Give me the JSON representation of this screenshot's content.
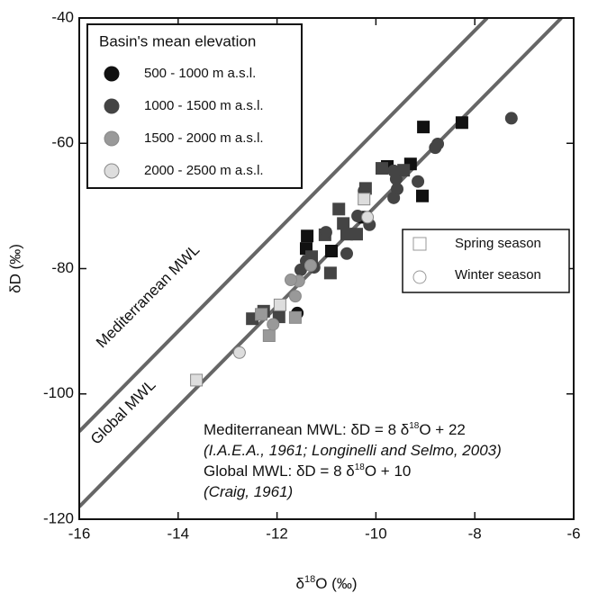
{
  "chart_data": {
    "type": "scatter",
    "xlabel": [
      {
        "text": "δ"
      },
      {
        "text": "18",
        "sup": true
      },
      {
        "text": "O (‰)"
      }
    ],
    "ylabel": "δD (‰)",
    "xlim": [
      -16,
      -6
    ],
    "xticks": [
      -16,
      -14,
      -12,
      -10,
      -8,
      -6
    ],
    "ylim": [
      -120,
      -40
    ],
    "yticks": [
      -120,
      -100,
      -80,
      -60,
      -40
    ],
    "legend_title": "Basin's mean elevation",
    "series": [
      {
        "name": "500 - 1000 m a.s.l.",
        "color": "#111111",
        "spring": {
          "x": [
            -8.26,
            -9.04,
            -9.06,
            -9.77,
            -9.3,
            -10.23,
            -11.41,
            -10.9,
            -11.36,
            -11.39
          ],
          "values": [
            -56.7,
            -57.4,
            -68.4,
            -63.7,
            -63.3,
            -71.8,
            -76.8,
            -77.2,
            -78.9,
            -74.8
          ]
        },
        "winter": {
          "x": [
            -11.59
          ],
          "values": [
            -87.1
          ]
        }
      },
      {
        "name": "1000 - 1500 m a.s.l.",
        "color": "#444444",
        "spring": {
          "x": [
            -12.5,
            -12.27,
            -11.96,
            -11.03,
            -10.75,
            -10.66,
            -10.59,
            -10.92,
            -10.39,
            -10.21,
            -9.88,
            -9.44,
            -11.3
          ],
          "values": [
            -88,
            -86.8,
            -87.7,
            -74.6,
            -70.5,
            -72.8,
            -74.5,
            -80.7,
            -74.5,
            -67.2,
            -64,
            -64.3,
            -78.1
          ]
        },
        "winter": {
          "x": [
            -7.26,
            -8.75,
            -8.8,
            -9.15,
            -9.64,
            -9.59,
            -9.57,
            -9.64,
            -10.13,
            -10.59,
            -11.25,
            -11.41,
            -10.37,
            -11.52,
            -10.24,
            -11.01
          ],
          "values": [
            -56,
            -60.1,
            -60.7,
            -66.1,
            -64.4,
            -65.7,
            -67.3,
            -68.7,
            -73,
            -77.6,
            -79.8,
            -78.8,
            -71.6,
            -80.2,
            -67.6,
            -74.2
          ]
        }
      },
      {
        "name": "1500 - 2000 m a.s.l.",
        "color": "#999999",
        "spring": {
          "x": [
            -11.63,
            -12.16,
            -12.32
          ],
          "values": [
            -87.8,
            -90.7,
            -87.3
          ]
        },
        "winter": {
          "x": [
            -12.08,
            -11.63,
            -11.56,
            -11.72,
            -11.32
          ],
          "values": [
            -88.9,
            -84.4,
            -82,
            -81.8,
            -79.5
          ]
        }
      },
      {
        "name": "2000 - 2500 m a.s.l.",
        "color": "#dddddd",
        "spring": {
          "x": [
            -13.63,
            -10.24,
            -11.94
          ],
          "values": [
            -97.8,
            -68.9,
            -85.8
          ]
        },
        "winter": {
          "x": [
            -12.76,
            -10.17
          ],
          "values": [
            -93.4,
            -71.8
          ]
        }
      }
    ],
    "seasons": [
      {
        "name": "Spring season",
        "marker": "square"
      },
      {
        "name": "Winter season",
        "marker": "circle"
      }
    ],
    "lines": [
      {
        "name": "Mediterranean MWL",
        "color": "#666666",
        "x": [
          -16,
          -7.75
        ],
        "values": [
          -106,
          -40
        ]
      },
      {
        "name": "Global MWL",
        "color": "#666666",
        "x": [
          -16,
          -6.25
        ],
        "values": [
          -118,
          -40
        ]
      }
    ],
    "annotation": [
      {
        "parts": [
          {
            "text": "Mediterranean MWL: δD = 8 δ"
          },
          {
            "text": "18",
            "sup": true
          },
          {
            "text": "O + 22"
          }
        ]
      },
      {
        "italic": true,
        "parts": [
          {
            "text": "(I.A.E.A., 1961; Longinelli and Selmo, 2003)"
          }
        ]
      },
      {
        "parts": [
          {
            "text": "Global MWL: δD = 8 δ"
          },
          {
            "text": "18",
            "sup": true
          },
          {
            "text": "O + 10"
          }
        ]
      },
      {
        "italic": true,
        "parts": [
          {
            "text": "(Craig, 1961)"
          }
        ]
      }
    ]
  }
}
